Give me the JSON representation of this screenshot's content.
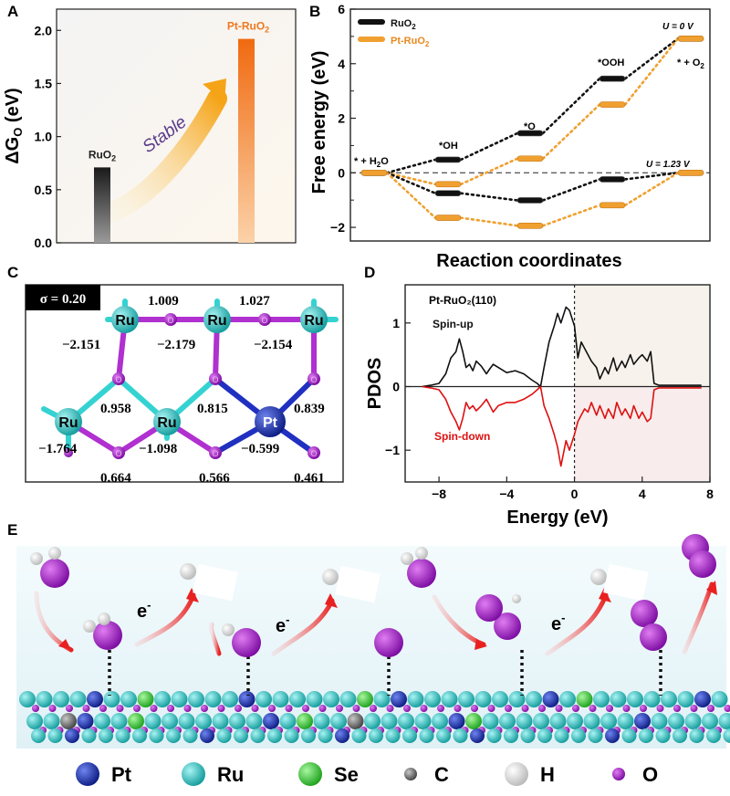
{
  "chart_data": [
    {
      "panel": "A",
      "type": "bar",
      "ylabel_main": "ΔG",
      "ylabel_sub": "O",
      "ylabel_unit": " (eV)",
      "ylim": [
        0.0,
        2.2
      ],
      "yticks": [
        "0.0",
        "0.5",
        "1.0",
        "1.5",
        "2.0"
      ],
      "yticks_values": [
        0.0,
        0.5,
        1.0,
        1.5,
        2.0
      ],
      "categories": [
        "RuO2",
        "Pt-RuO2"
      ],
      "labels": [
        {
          "main": "RuO",
          "sub": "2"
        },
        {
          "main": "Pt-RuO",
          "sub": "2"
        }
      ],
      "values": [
        0.71,
        1.92
      ],
      "annotation": "Stable",
      "colors": {
        "ruo2": "#555555",
        "pt_ruo2": "#f07820",
        "arrow": "#f2a020",
        "stable_text": "#5a3a8a"
      }
    },
    {
      "panel": "B",
      "type": "line",
      "xlabel": "Reaction coordinates",
      "ylabel": "Free energy (eV)",
      "ylim": [
        -2.5,
        6
      ],
      "yticks": [
        "−2",
        "0",
        "2",
        "4",
        "6"
      ],
      "yticks_values": [
        -2,
        0,
        2,
        4,
        6
      ],
      "legend": [
        {
          "main": "RuO",
          "sub": "2",
          "color": "#111111"
        },
        {
          "main": "Pt-RuO",
          "sub": "2",
          "color": "#f0a030"
        }
      ],
      "legend_placement": "top-left",
      "step_labels": [
        {
          "main": "* + H",
          "sub": "2",
          "tail": "O"
        },
        {
          "main": "*OH",
          "sub": "",
          "tail": ""
        },
        {
          "main": "*O",
          "sub": "",
          "tail": ""
        },
        {
          "main": "*OOH",
          "sub": "",
          "tail": ""
        },
        {
          "main": "* + O",
          "sub": "2",
          "tail": ""
        }
      ],
      "potential_labels": [
        "U = 0 V",
        "U = 1.23 V"
      ],
      "series": [
        {
          "name": "RuO2",
          "potential": "U = 0 V",
          "values": [
            0,
            0.48,
            1.45,
            3.45,
            4.92
          ]
        },
        {
          "name": "Pt-RuO2",
          "potential": "U = 0 V",
          "values": [
            0,
            -0.42,
            0.52,
            2.5,
            4.92
          ]
        },
        {
          "name": "RuO2",
          "potential": "U = 1.23 V",
          "values": [
            0,
            -0.75,
            -1.01,
            -0.24,
            0
          ]
        },
        {
          "name": "Pt-RuO2",
          "potential": "U = 1.23 V",
          "values": [
            0,
            -1.65,
            -1.94,
            -1.19,
            0
          ]
        }
      ]
    },
    {
      "panel": "C",
      "type": "other",
      "sigma": "σ = 0.20",
      "atoms": [
        {
          "el": "Ru",
          "charge": "−2.151"
        },
        {
          "el": "Ru",
          "charge": "−2.179"
        },
        {
          "el": "Ru",
          "charge": "−2.154"
        },
        {
          "el": "Ru",
          "charge": "−1.764"
        },
        {
          "el": "Ru",
          "charge": "−1.098"
        },
        {
          "el": "Pt",
          "charge": "−0.599"
        }
      ],
      "oxygen_charges": [
        "1.009",
        "1.027",
        "0.958",
        "0.815",
        "0.839",
        "0.664",
        "0.566",
        "0.461"
      ],
      "atom_symbol": "O"
    },
    {
      "panel": "D",
      "type": "line",
      "title": "Pt-RuO₂(110)",
      "xlabel": "Energy (eV)",
      "ylabel": "PDOS",
      "xlim": [
        -10,
        8
      ],
      "ylim": [
        -1.5,
        1.6
      ],
      "xticks": [
        "−8",
        "−4",
        "0",
        "4",
        "8"
      ],
      "xticks_values": [
        -8,
        -4,
        0,
        4,
        8
      ],
      "yticks": [
        "−1",
        "0",
        "1"
      ],
      "yticks_values": [
        -1,
        0,
        1
      ],
      "series": [
        {
          "name": "Spin-up",
          "color": "#111111",
          "x": [
            -9,
            -8.5,
            -8,
            -7.6,
            -7.3,
            -7.0,
            -6.8,
            -6.6,
            -6.4,
            -6.2,
            -6.0,
            -5.8,
            -5.5,
            -5.2,
            -5.0,
            -4.8,
            -4.5,
            -4.0,
            -3.5,
            -3.0,
            -2.5,
            -2.2,
            -2.0,
            -1.8,
            -1.5,
            -1.2,
            -1.0,
            -0.8,
            -0.5,
            -0.3,
            0,
            0.2,
            0.4,
            0.6,
            0.8,
            1.0,
            1.3,
            1.5,
            1.8,
            2.0,
            2.3,
            2.5,
            2.8,
            3.0,
            3.3,
            3.5,
            3.8,
            4.0,
            4.3,
            4.5,
            4.7,
            5,
            5.5,
            6,
            6.5,
            7,
            7.5
          ],
          "y": [
            0,
            0.02,
            0.05,
            0.2,
            0.45,
            0.55,
            0.75,
            0.55,
            0.3,
            0.35,
            0.25,
            0.4,
            0.32,
            0.2,
            0.28,
            0.35,
            0.3,
            0.22,
            0.25,
            0.2,
            0.1,
            0.05,
            0,
            0.3,
            0.7,
            0.95,
            1.15,
            1.0,
            1.25,
            1.2,
            0.95,
            0.45,
            0.7,
            0.6,
            0.5,
            0.4,
            0.3,
            0.12,
            0.3,
            0.2,
            0.45,
            0.25,
            0.4,
            0.3,
            0.5,
            0.35,
            0.45,
            0.5,
            0.4,
            0.55,
            0.05,
            0.02,
            0.02,
            0.02,
            0.02,
            0.02,
            0.02
          ]
        },
        {
          "name": "Spin-down",
          "color": "#dd1111",
          "x": [
            -9,
            -8.5,
            -8,
            -7.6,
            -7.3,
            -7.0,
            -6.8,
            -6.6,
            -6.4,
            -6.2,
            -6.0,
            -5.8,
            -5.5,
            -5.2,
            -5.0,
            -4.8,
            -4.5,
            -4.0,
            -3.5,
            -3.0,
            -2.5,
            -2.2,
            -2.0,
            -1.8,
            -1.5,
            -1.2,
            -1.0,
            -0.8,
            -0.5,
            -0.3,
            0,
            0.2,
            0.4,
            0.6,
            0.8,
            1.0,
            1.3,
            1.5,
            1.8,
            2.0,
            2.3,
            2.5,
            2.8,
            3.0,
            3.3,
            3.5,
            3.8,
            4.0,
            4.3,
            4.5,
            4.7,
            5,
            5.5,
            6,
            6.5,
            7,
            7.5
          ],
          "y": [
            0,
            -0.02,
            -0.05,
            -0.2,
            -0.4,
            -0.55,
            -0.68,
            -0.5,
            -0.25,
            -0.35,
            -0.3,
            -0.38,
            -0.3,
            -0.2,
            -0.3,
            -0.4,
            -0.3,
            -0.25,
            -0.25,
            -0.2,
            -0.12,
            -0.05,
            0,
            -0.3,
            -0.5,
            -0.75,
            -0.95,
            -1.25,
            -0.85,
            -1.0,
            -0.75,
            -0.55,
            -0.45,
            -0.35,
            -0.4,
            -0.25,
            -0.45,
            -0.3,
            -0.5,
            -0.35,
            -0.5,
            -0.25,
            -0.45,
            -0.35,
            -0.5,
            -0.3,
            -0.5,
            -0.4,
            -0.55,
            -0.5,
            -0.05,
            -0.02,
            -0.02,
            -0.02,
            -0.02,
            -0.02,
            -0.02
          ]
        }
      ],
      "fill": {
        "up": "#f7f3ec",
        "down": "#f9ecec"
      }
    },
    {
      "panel": "E",
      "type": "other",
      "electron_label": {
        "main": "e",
        "sup": "-"
      },
      "legend": [
        {
          "label": "Pt",
          "color": "#1a2fb0"
        },
        {
          "label": "Ru",
          "color": "#1fc4c4"
        },
        {
          "label": "Se",
          "color": "#3ad23a"
        },
        {
          "label": "C",
          "color": "#777777"
        },
        {
          "label": "H",
          "color": "#f0f0f0"
        },
        {
          "label": "O",
          "color": "#9b1fc4"
        }
      ]
    }
  ],
  "panel_letters": [
    "A",
    "B",
    "C",
    "D",
    "E"
  ]
}
